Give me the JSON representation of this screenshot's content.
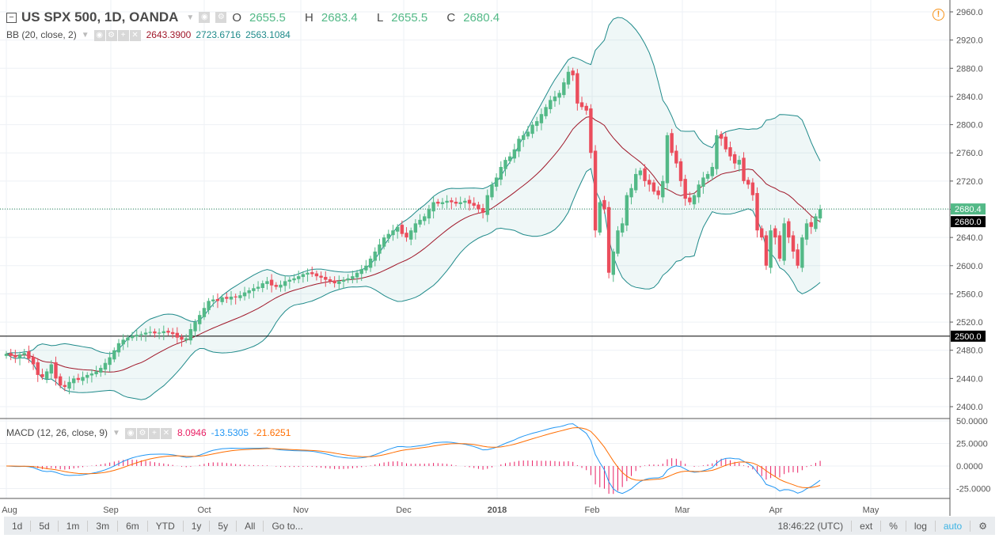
{
  "header": {
    "symbol": "US SPX 500, 1D, OANDA",
    "open_label": "O",
    "open": "2655.5",
    "high_label": "H",
    "high": "2683.4",
    "low_label": "L",
    "low": "2655.5",
    "close_label": "C",
    "close": "2680.4"
  },
  "bb": {
    "label": "BB (20, close, 2)",
    "basis": "2643.3900",
    "upper": "2723.6716",
    "lower": "2563.1084",
    "basis_color": "#a0182a",
    "band_color": "#1f8a8a"
  },
  "macd": {
    "label": "MACD (12, 26, close, 9)",
    "hist": "8.0946",
    "macd": "-13.5305",
    "signal": "-21.6251",
    "hist_color": "#e91e63",
    "macd_color": "#2196f3",
    "signal_color": "#ff6d00"
  },
  "price_axis": {
    "ticks": [
      "2960.0",
      "2920.0",
      "2880.0",
      "2840.0",
      "2800.0",
      "2760.0",
      "2720.0",
      "2680.0",
      "2640.0",
      "2600.0",
      "2560.0",
      "2520.0",
      "2480.0",
      "2440.0",
      "2400.0"
    ],
    "last_price": "2680.4",
    "crosshair_price": "2680.0",
    "line_price": "2500.0"
  },
  "macd_axis": {
    "ticks": [
      "50.0000",
      "25.0000",
      "0.0000",
      "-25.0000"
    ]
  },
  "time_axis": {
    "ticks": [
      "Aug",
      "Sep",
      "Oct",
      "Nov",
      "Dec",
      "2018",
      "Feb",
      "Mar",
      "Apr",
      "May"
    ]
  },
  "toolbar": {
    "ranges": [
      "1d",
      "5d",
      "1m",
      "3m",
      "6m",
      "YTD",
      "1y",
      "5y",
      "All",
      "Go to..."
    ],
    "time": "18:46:22 (UTC)",
    "ext": "ext",
    "pct": "%",
    "log": "log",
    "auto": "auto"
  },
  "colors": {
    "up": "#53b987",
    "down": "#eb4d5c"
  },
  "chart_data": {
    "type": "candlestick",
    "ylim": [
      2400,
      2960
    ],
    "closes": [
      2475,
      2472,
      2470,
      2474,
      2476,
      2468,
      2460,
      2445,
      2442,
      2450,
      2460,
      2440,
      2430,
      2428,
      2435,
      2440,
      2438,
      2442,
      2445,
      2447,
      2450,
      2455,
      2462,
      2470,
      2480,
      2490,
      2495,
      2498,
      2500,
      2502,
      2503,
      2505,
      2506,
      2504,
      2505,
      2507,
      2505,
      2503,
      2498,
      2495,
      2497,
      2510,
      2520,
      2530,
      2540,
      2550,
      2552,
      2550,
      2555,
      2553,
      2556,
      2555,
      2558,
      2562,
      2565,
      2568,
      2570,
      2575,
      2578,
      2572,
      2570,
      2573,
      2578,
      2580,
      2582,
      2585,
      2588,
      2590,
      2588,
      2585,
      2583,
      2580,
      2578,
      2575,
      2578,
      2580,
      2582,
      2585,
      2590,
      2595,
      2600,
      2610,
      2620,
      2630,
      2640,
      2645,
      2650,
      2655,
      2645,
      2640,
      2650,
      2660,
      2665,
      2670,
      2680,
      2690,
      2688,
      2690,
      2692,
      2690,
      2688,
      2690,
      2692,
      2688,
      2685,
      2680,
      2675,
      2700,
      2715,
      2725,
      2740,
      2750,
      2755,
      2765,
      2780,
      2785,
      2790,
      2800,
      2805,
      2815,
      2825,
      2835,
      2840,
      2845,
      2860,
      2875,
      2870,
      2830,
      2825,
      2820,
      2760,
      2650,
      2690,
      2680,
      2590,
      2620,
      2650,
      2660,
      2700,
      2710,
      2730,
      2735,
      2720,
      2715,
      2705,
      2700,
      2720,
      2785,
      2760,
      2745,
      2720,
      2695,
      2690,
      2700,
      2715,
      2725,
      2730,
      2740,
      2785,
      2780,
      2765,
      2755,
      2745,
      2750,
      2720,
      2715,
      2700,
      2650,
      2640,
      2600,
      2650,
      2640,
      2610,
      2660,
      2640,
      2620,
      2600,
      2640,
      2660,
      2655,
      2670,
      2680.4
    ]
  }
}
